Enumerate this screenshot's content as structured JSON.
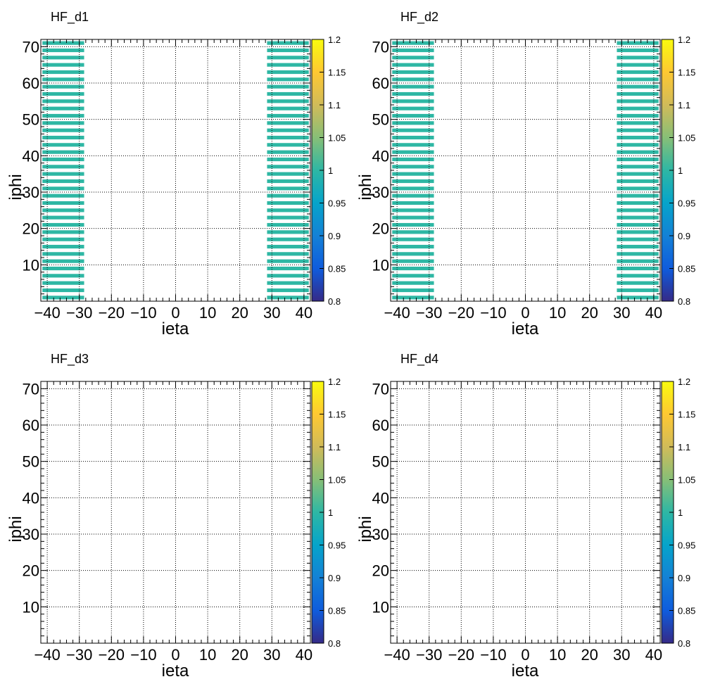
{
  "chart_data": [
    {
      "type": "heatmap",
      "title": "HF_d1",
      "xlabel": "ieta",
      "ylabel": "iphi",
      "xlim": [
        -42,
        42
      ],
      "ylim": [
        0,
        72
      ],
      "x_ticks": [
        -40,
        -30,
        -20,
        -10,
        0,
        10,
        20,
        30,
        40
      ],
      "y_ticks": [
        10,
        20,
        30,
        40,
        50,
        60,
        70
      ],
      "zlim": [
        0.8,
        1.2
      ],
      "z_ticks": [
        "0.8",
        "0.85",
        "0.9",
        "0.95",
        "1",
        "1.05",
        "1.1",
        "1.15",
        "1.2"
      ],
      "grid": true,
      "cells": {
        "value": 1.0,
        "ieta_ranges": [
          [
            -41,
            -29
          ],
          [
            29,
            41
          ]
        ],
        "iphi": [
          1,
          3,
          5,
          7,
          9,
          11,
          13,
          15,
          17,
          19,
          21,
          23,
          25,
          27,
          29,
          31,
          33,
          35,
          37,
          39,
          41,
          43,
          45,
          47,
          49,
          51,
          53,
          55,
          57,
          59,
          61,
          63,
          65,
          67,
          69,
          71
        ]
      }
    },
    {
      "type": "heatmap",
      "title": "HF_d2",
      "xlabel": "ieta",
      "ylabel": "iphi",
      "xlim": [
        -42,
        42
      ],
      "ylim": [
        0,
        72
      ],
      "x_ticks": [
        -40,
        -30,
        -20,
        -10,
        0,
        10,
        20,
        30,
        40
      ],
      "y_ticks": [
        10,
        20,
        30,
        40,
        50,
        60,
        70
      ],
      "zlim": [
        0.8,
        1.2
      ],
      "z_ticks": [
        "0.8",
        "0.85",
        "0.9",
        "0.95",
        "1",
        "1.05",
        "1.1",
        "1.15",
        "1.2"
      ],
      "grid": true,
      "cells": {
        "value": 1.0,
        "ieta_ranges": [
          [
            -41,
            -29
          ],
          [
            29,
            41
          ]
        ],
        "iphi": [
          1,
          3,
          5,
          7,
          9,
          11,
          13,
          15,
          17,
          19,
          21,
          23,
          25,
          27,
          29,
          31,
          33,
          35,
          37,
          39,
          41,
          43,
          45,
          47,
          49,
          51,
          53,
          55,
          57,
          59,
          61,
          63,
          65,
          67,
          69,
          71
        ]
      }
    },
    {
      "type": "heatmap",
      "title": "HF_d3",
      "xlabel": "ieta",
      "ylabel": "iphi",
      "xlim": [
        -42,
        42
      ],
      "ylim": [
        0,
        72
      ],
      "x_ticks": [
        -40,
        -30,
        -20,
        -10,
        0,
        10,
        20,
        30,
        40
      ],
      "y_ticks": [
        10,
        20,
        30,
        40,
        50,
        60,
        70
      ],
      "zlim": [
        0.8,
        1.2
      ],
      "z_ticks": [
        "0.8",
        "0.85",
        "0.9",
        "0.95",
        "1",
        "1.05",
        "1.1",
        "1.15",
        "1.2"
      ],
      "grid": true,
      "cells": null
    },
    {
      "type": "heatmap",
      "title": "HF_d4",
      "xlabel": "ieta",
      "ylabel": "iphi",
      "xlim": [
        -42,
        42
      ],
      "ylim": [
        0,
        72
      ],
      "x_ticks": [
        -40,
        -30,
        -20,
        -10,
        0,
        10,
        20,
        30,
        40
      ],
      "y_ticks": [
        10,
        20,
        30,
        40,
        50,
        60,
        70
      ],
      "zlim": [
        0.8,
        1.2
      ],
      "z_ticks": [
        "0.8",
        "0.85",
        "0.9",
        "0.95",
        "1",
        "1.05",
        "1.1",
        "1.15",
        "1.2"
      ],
      "grid": true,
      "cells": null
    }
  ],
  "palette": [
    "#352a87",
    "#0f5cdd",
    "#1481d6",
    "#06a4ca",
    "#2eb7a4",
    "#87bf77",
    "#d1bb59",
    "#fec832",
    "#f9fb0e"
  ]
}
